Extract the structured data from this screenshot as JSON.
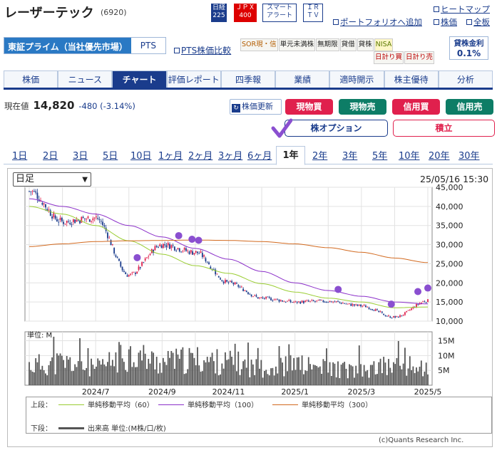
{
  "header": {
    "company": "レーザーテック",
    "code": "(6920)",
    "badge_nikkei_top": "日経",
    "badge_nikkei_bottom": "225",
    "badge_jpx_top": "ＪＰＸ",
    "badge_jpx_bottom": "400",
    "badge_smart_top": "スマート",
    "badge_smart_bottom": "アラート",
    "badge_ir_top": "ＩＲ",
    "badge_ir_bottom": "ＴＶ",
    "portfolio_add": "ポートフォリオへ追加",
    "heatmap": "ヒートマップ",
    "stock_price": "株価",
    "board": "全板"
  },
  "market": {
    "primary": "東証プライム（当社優先市場）",
    "pts": "PTS",
    "pts_compare": "PTS株価比較"
  },
  "tags": {
    "row1": [
      "SOR現・信",
      "単元未満株",
      "無期限",
      "貸借",
      "貸株",
      "NISA"
    ],
    "row2": [
      "日計り買",
      "日計り売"
    ]
  },
  "fee": {
    "label": "貸株金利",
    "value": "0.1%"
  },
  "tabs": [
    "株価",
    "ニュース",
    "チャート",
    "評価レポート",
    "四季報",
    "業績",
    "適時開示",
    "株主優待",
    "分析"
  ],
  "active_tab": "チャート",
  "price": {
    "label": "現在値",
    "value": "14,820",
    "change": "-480 (-3.14%)"
  },
  "actions": {
    "refresh": "株価更新",
    "buy_cash": "現物買",
    "sell_cash": "現物売",
    "buy_margin": "信用買",
    "sell_margin": "信用売",
    "option": "株オプション",
    "tsumitate": "積立"
  },
  "periods": [
    "1日",
    "2日",
    "3日",
    "5日",
    "10日",
    "1ヶ月",
    "2ヶ月",
    "3ヶ月",
    "6ヶ月",
    "1年",
    "2年",
    "3年",
    "5年",
    "10年",
    "20年",
    "30年"
  ],
  "active_period": "1年",
  "chart_select": "日足",
  "timestamp": "25/05/16 15:30",
  "legend": {
    "upper_label": "上段：",
    "lower_label": "下段：",
    "ma60": "単純移動平均（60）",
    "ma100": "単純移動平均（100）",
    "ma300": "単純移動平均（300）",
    "volume": "出来高 単位:(M株/口/枚)"
  },
  "copyright": "(c)Quants Research Inc.",
  "colors": {
    "brand": "#1a3c8c",
    "up_candle": "#e0204d",
    "down_candle": "#1a3c8c",
    "ma60": "#9acd32",
    "ma100": "#8b2fc9",
    "ma300": "#d2691e",
    "volume_bar": "#555555",
    "marker": "#8a4fd0"
  },
  "chart_data": [
    {
      "type": "candlestick",
      "ylim": [
        10000,
        45000
      ],
      "yticks": [
        "10,000",
        "15,000",
        "20,000",
        "25,000",
        "30,000",
        "35,000",
        "40,000",
        "45,000"
      ],
      "grid": true,
      "x": [
        "2024/5",
        "2024/6",
        "2024/7",
        "2024/8",
        "2024/9",
        "2024/10",
        "2024/11",
        "2024/12",
        "2025/1",
        "2025/2",
        "2025/3",
        "2025/4",
        "2025/5"
      ],
      "close": [
        44000,
        36000,
        37000,
        22000,
        30000,
        28000,
        20000,
        16000,
        15000,
        15200,
        14000,
        11000,
        15300
      ],
      "xtick_labels": [
        "2024/7",
        "2024/9",
        "2024/11",
        "2025/1",
        "2025/3",
        "2025/5"
      ],
      "series": [
        {
          "name": "単純移動平均（60）",
          "values": [
            40000,
            38000,
            35000,
            31000,
            27500,
            24500,
            22500,
            19800,
            17600,
            16000,
            15000,
            13500,
            13700
          ]
        },
        {
          "name": "単純移動平均（100）",
          "values": [
            42000,
            40000,
            38000,
            35000,
            32000,
            29000,
            26200,
            23000,
            20000,
            18000,
            16500,
            15000,
            14500
          ]
        },
        {
          "name": "単純移動平均（300）",
          "values": [
            29500,
            30200,
            30800,
            31000,
            31100,
            31200,
            31100,
            30800,
            30200,
            29200,
            28000,
            26500,
            25300
          ]
        }
      ],
      "markers": [
        "2024/8",
        "2024/9",
        "2024/9",
        "2024/10",
        "2025/2",
        "2025/3",
        "2025/4",
        "2025/5"
      ]
    },
    {
      "type": "bar",
      "title": "単位: M",
      "ylim": [
        0,
        18
      ],
      "yticks": [
        "5M",
        "10M",
        "15M"
      ],
      "x": [
        "2024/5",
        "2024/6",
        "2024/7",
        "2024/8",
        "2024/9",
        "2024/10",
        "2024/11",
        "2024/12",
        "2025/1",
        "2025/2",
        "2025/3",
        "2025/4",
        "2025/5"
      ],
      "values": [
        7,
        8,
        6,
        11,
        8,
        9,
        8,
        6,
        7,
        6,
        5,
        7,
        6
      ]
    }
  ]
}
